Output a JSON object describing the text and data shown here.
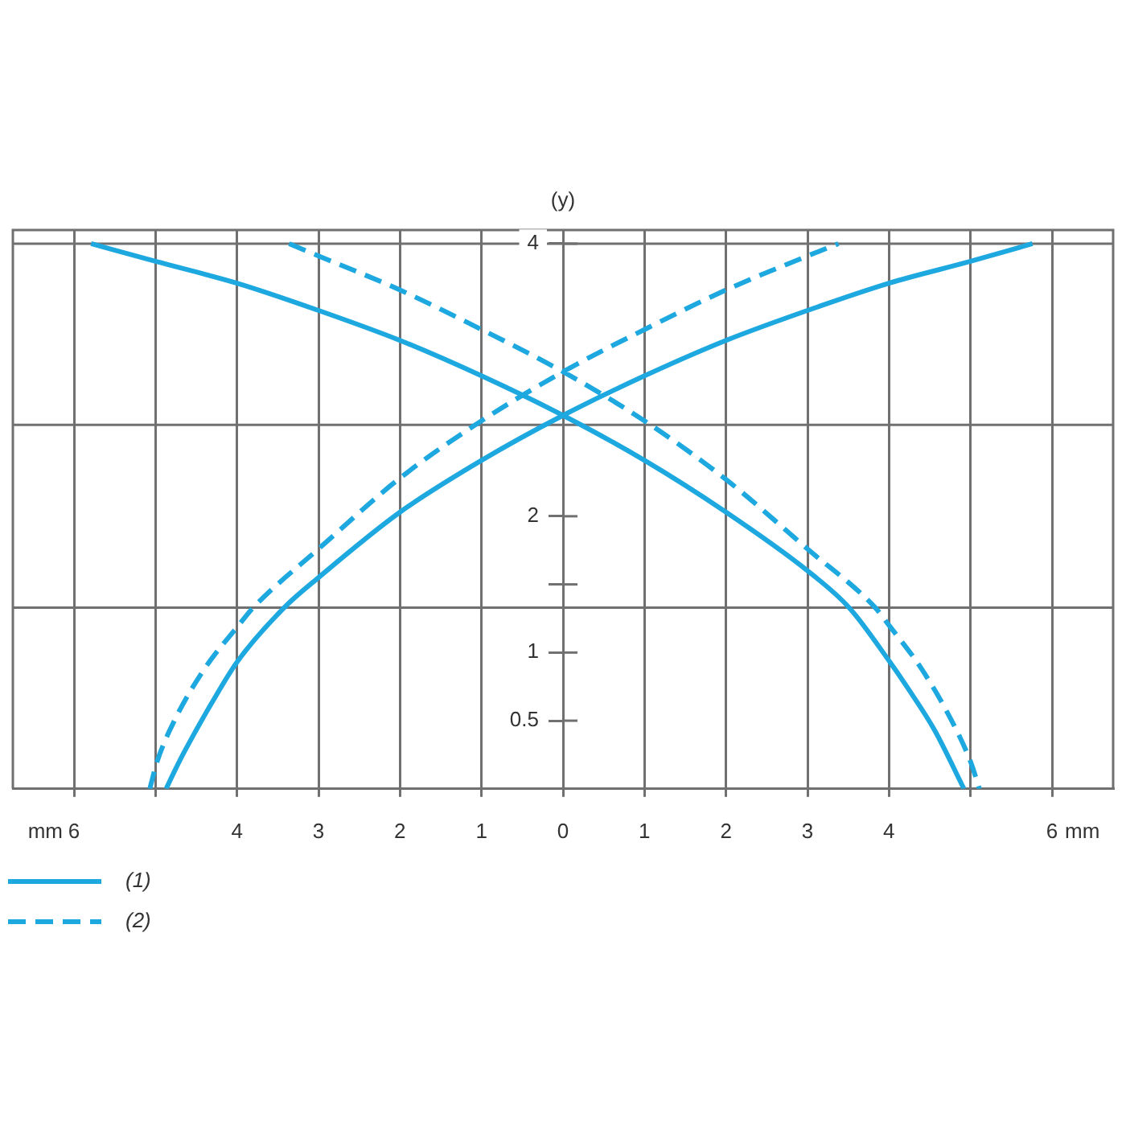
{
  "chart_data": {
    "type": "line",
    "ylabel": "(y)",
    "xlabel": "mm",
    "xlim": [
      -6.75,
      6.75
    ],
    "ylim": [
      0,
      4.1
    ],
    "xticks": [
      {
        "value": -6,
        "label": "6"
      },
      {
        "value": -5,
        "label": null
      },
      {
        "value": -4,
        "label": "4"
      },
      {
        "value": -3,
        "label": "3"
      },
      {
        "value": -2,
        "label": "2"
      },
      {
        "value": -1,
        "label": "1"
      },
      0,
      1,
      2,
      3,
      4,
      {
        "value": 5,
        "label": null
      },
      6
    ],
    "yticks": [
      0.5,
      1,
      {
        "value": 1.5,
        "label": null
      },
      2,
      4
    ],
    "grid": "x",
    "marker": "none",
    "legend": "bottom left",
    "ref_lines": [
      {
        "axis": "y",
        "value": 1.33,
        "color": "#707070"
      },
      {
        "axis": "y",
        "value": 2.67,
        "color": "#707070"
      },
      {
        "axis": "y",
        "value": 4,
        "color": "#707070"
      }
    ],
    "series": [
      {
        "name": "(1)",
        "color": "#1ea8e0",
        "line_style": "solid",
        "x": [
          -5.79,
          -5,
          -4,
          -3,
          -2,
          -1,
          0,
          1,
          2,
          3,
          3.51,
          4,
          4.23,
          4.56,
          4.92,
          null,
          -4.87,
          -4.75,
          -4.63,
          -4.31,
          -4,
          -3.42,
          -3,
          -2,
          -1,
          0,
          1,
          2,
          3,
          4,
          5,
          5.76
        ],
        "values": [
          4,
          3.87,
          3.71,
          3.51,
          3.29,
          3.03,
          2.74,
          2.41,
          2.03,
          1.6,
          1.33,
          0.94,
          0.74,
          0.43,
          0,
          null,
          0,
          0.15,
          0.29,
          0.63,
          0.93,
          1.33,
          1.55,
          2.03,
          2.41,
          2.74,
          3.03,
          3.29,
          3.51,
          3.71,
          3.87,
          4
        ]
      },
      {
        "name": "(2)",
        "color": "#1ea8e0",
        "line_style": "dashed",
        "x": [
          -3.36,
          -3,
          -2,
          -1,
          0,
          1,
          2,
          3,
          3.83,
          4,
          4.4,
          4.76,
          5,
          5.11,
          null,
          -5.07,
          -4.98,
          -4.76,
          -4.4,
          -3.98,
          -3.8,
          -3,
          -2,
          -1,
          0,
          1,
          2,
          3,
          3.38
        ],
        "values": [
          4,
          3.91,
          3.66,
          3.37,
          3.06,
          2.7,
          2.27,
          1.76,
          1.33,
          1.2,
          0.88,
          0.51,
          0.2,
          0,
          null,
          0,
          0.2,
          0.51,
          0.88,
          1.2,
          1.33,
          1.76,
          2.28,
          2.7,
          3.06,
          3.37,
          3.66,
          3.91,
          4
        ]
      }
    ]
  }
}
